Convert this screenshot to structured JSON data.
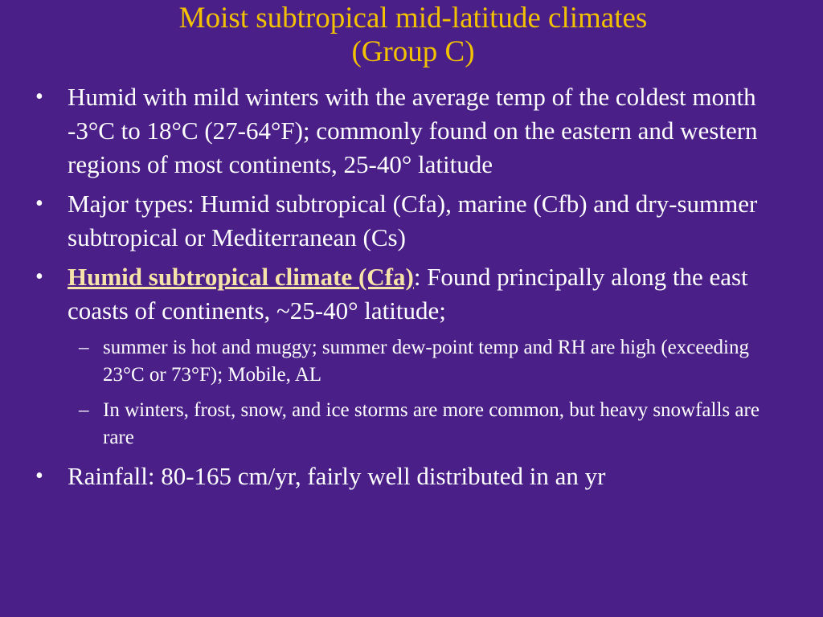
{
  "slide": {
    "title_line1": "Moist subtropical mid-latitude climates",
    "title_line2": "(Group C)",
    "bullets": [
      {
        "text": "Humid with mild winters with the average temp of the coldest month -3°C to 18°C (27-64°F); commonly found on the eastern and western regions of most continents, 25-40° latitude"
      },
      {
        "text": "Major types: Humid subtropical (Cfa), marine (Cfb) and dry-summer subtropical or Mediterranean (Cs)"
      },
      {
        "lead": "Humid subtropical climate (Cfa)",
        "text": ": Found principally along the east coasts of continents, ~25-40° latitude;",
        "sub": [
          "summer is hot and muggy; summer dew-point temp and RH are high (exceeding 23°C or 73°F); Mobile, AL",
          "In winters, frost, snow, and ice storms are more common, but heavy snowfalls are rare"
        ]
      },
      {
        "text": "Rainfall: 80-165 cm/yr, fairly well distributed in an yr"
      }
    ]
  },
  "colors": {
    "background": "#4a1f88",
    "title": "#f2c200",
    "body_text": "#ffffff",
    "lead_text": "#f6e3a8"
  }
}
